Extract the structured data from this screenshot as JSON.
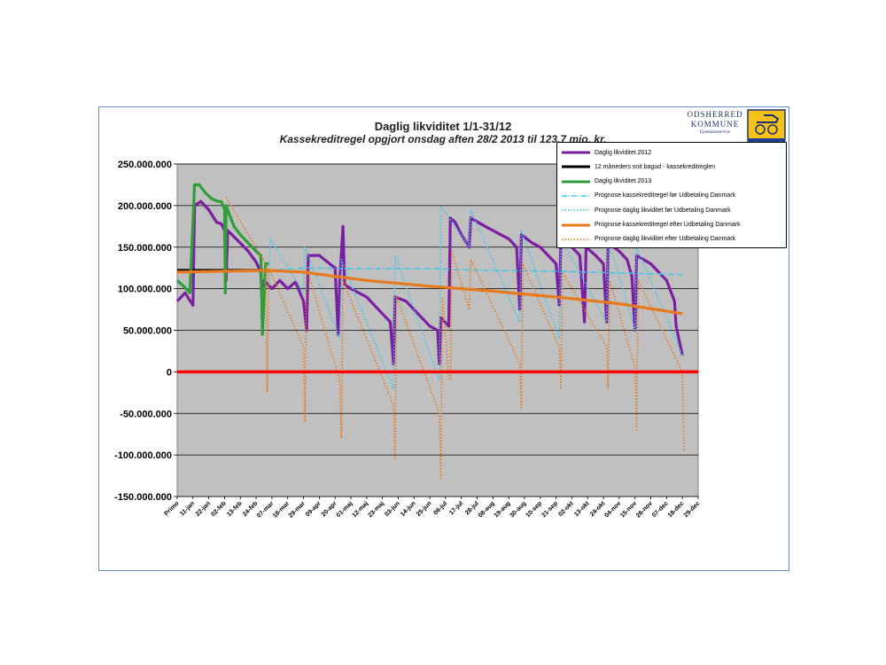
{
  "logo": {
    "line1": "ODSHERRED",
    "line2": "KOMMUNE",
    "line3": "Ejendomsservice"
  },
  "chart_data": {
    "type": "line",
    "title": "Daglig likviditet 1/1-31/12",
    "subtitle": "Kassekreditregel opgjort onsdag aften 28/2 2013 til 123,7 mio. kr.",
    "ylim": [
      -150000000,
      250000000
    ],
    "yticks": [
      "250.000.000",
      "200.000.000",
      "150.000.000",
      "100.000.000",
      "50.000.000",
      "0",
      "-50.000.000",
      "-100.000.000",
      "-150.000.000"
    ],
    "categories": [
      "Primo",
      "11-jan",
      "22-jan",
      "02-feb",
      "13-feb",
      "24-feb",
      "07-mar",
      "18-mar",
      "29-mar",
      "09-apr",
      "20-apr",
      "01-maj",
      "12-maj",
      "23-maj",
      "03-jun",
      "14-jun",
      "25-jun",
      "06-jul",
      "17-jul",
      "28-jul",
      "08-aug",
      "19-aug",
      "30-aug",
      "10-sep",
      "21-sep",
      "02-okt",
      "13-okt",
      "24-okt",
      "04-nov",
      "15-nov",
      "26-nov",
      "07-dec",
      "18-dec",
      "29-dec"
    ],
    "grid": true,
    "legend_position": "top-right",
    "zero_line_color": "#ff0000",
    "series": [
      {
        "name": "Daglig likviditet 2012",
        "color": "#7b1fa2",
        "style": "solid",
        "points": [
          [
            0,
            85
          ],
          [
            0.5,
            95
          ],
          [
            1,
            80
          ],
          [
            1.1,
            200
          ],
          [
            1.5,
            205
          ],
          [
            2,
            195
          ],
          [
            2.5,
            180
          ],
          [
            2.8,
            178
          ],
          [
            3,
            170
          ],
          [
            3.1,
            110
          ],
          [
            3.2,
            170
          ],
          [
            4,
            155
          ],
          [
            4.5,
            145
          ],
          [
            5,
            132
          ],
          [
            5.3,
            120
          ],
          [
            5.4,
            70
          ],
          [
            5.5,
            110
          ],
          [
            6,
            100
          ],
          [
            6.5,
            110
          ],
          [
            7,
            100
          ],
          [
            7.5,
            108
          ],
          [
            8,
            85
          ],
          [
            8.2,
            50
          ],
          [
            8.3,
            140
          ],
          [
            9,
            140
          ],
          [
            10,
            125
          ],
          [
            10.2,
            45
          ],
          [
            10.3,
            110
          ],
          [
            10.5,
            175
          ],
          [
            10.6,
            105
          ],
          [
            11,
            100
          ],
          [
            12,
            90
          ],
          [
            13,
            70
          ],
          [
            13.5,
            60
          ],
          [
            13.7,
            10
          ],
          [
            13.8,
            90
          ],
          [
            14.5,
            85
          ],
          [
            15,
            75
          ],
          [
            16,
            55
          ],
          [
            16.5,
            50
          ],
          [
            16.6,
            10
          ],
          [
            16.7,
            65
          ],
          [
            17.2,
            55
          ],
          [
            17.3,
            185
          ],
          [
            17.6,
            180
          ],
          [
            18,
            165
          ],
          [
            18.5,
            150
          ],
          [
            18.6,
            185
          ],
          [
            19.5,
            175
          ],
          [
            20,
            170
          ],
          [
            21,
            160
          ],
          [
            21.5,
            150
          ],
          [
            21.7,
            75
          ],
          [
            21.8,
            165
          ],
          [
            22.5,
            155
          ],
          [
            23,
            150
          ],
          [
            23.5,
            140
          ],
          [
            24,
            130
          ],
          [
            24.2,
            80
          ],
          [
            24.3,
            155
          ],
          [
            25,
            150
          ],
          [
            25.5,
            140
          ],
          [
            25.8,
            60
          ],
          [
            25.9,
            150
          ],
          [
            26.5,
            140
          ],
          [
            27,
            130
          ],
          [
            27.2,
            60
          ],
          [
            27.3,
            155
          ],
          [
            28,
            145
          ],
          [
            28.5,
            135
          ],
          [
            28.8,
            115
          ],
          [
            29,
            50
          ],
          [
            29.1,
            140
          ],
          [
            30,
            130
          ],
          [
            31,
            110
          ],
          [
            31.5,
            85
          ],
          [
            31.6,
            55
          ],
          [
            32,
            20
          ]
        ]
      },
      {
        "name": "12 måneders snit bagud - kassekreditreglen",
        "color": "#000000",
        "style": "solid",
        "points": [
          [
            0,
            122
          ],
          [
            5.8,
            122
          ]
        ]
      },
      {
        "name": "Daglig likviditet 2013",
        "color": "#2e9d3a",
        "style": "solid",
        "points": [
          [
            0,
            110
          ],
          [
            0.3,
            105
          ],
          [
            0.8,
            95
          ],
          [
            1.1,
            225
          ],
          [
            1.4,
            225
          ],
          [
            1.8,
            215
          ],
          [
            2.2,
            208
          ],
          [
            2.6,
            205
          ],
          [
            2.8,
            205
          ],
          [
            3.0,
            195
          ],
          [
            3.05,
            95
          ],
          [
            3.1,
            200
          ],
          [
            3.6,
            175
          ],
          [
            4,
            165
          ],
          [
            4.5,
            155
          ],
          [
            5,
            145
          ],
          [
            5.3,
            140
          ],
          [
            5.4,
            45
          ],
          [
            5.6,
            130
          ],
          [
            5.8,
            130
          ]
        ]
      },
      {
        "name": "Prognose kassekreditregel før Udbetaling Danmark",
        "color": "#3ec5ea",
        "style": "dashdot",
        "points": [
          [
            5.8,
            122
          ],
          [
            8,
            125
          ],
          [
            12,
            124
          ],
          [
            16,
            124
          ],
          [
            20,
            122
          ],
          [
            24,
            121
          ],
          [
            28,
            119
          ],
          [
            32,
            117
          ]
        ]
      },
      {
        "name": "Prognose daglig likviditet før Udbetaling Danmark",
        "color": "#3ec5ea",
        "style": "dotted",
        "points": [
          [
            5.8,
            100
          ],
          [
            5.9,
            160
          ],
          [
            8,
            95
          ],
          [
            8.1,
            150
          ],
          [
            10.3,
            40
          ],
          [
            10.4,
            135
          ],
          [
            13.7,
            -20
          ],
          [
            13.8,
            140
          ],
          [
            16.6,
            -10
          ],
          [
            16.7,
            200
          ],
          [
            18.5,
            150
          ],
          [
            18.6,
            195
          ],
          [
            21.7,
            60
          ],
          [
            21.8,
            170
          ],
          [
            24.2,
            40
          ],
          [
            24.3,
            160
          ],
          [
            27.2,
            60
          ],
          [
            27.3,
            160
          ],
          [
            29,
            50
          ],
          [
            29.1,
            150
          ],
          [
            32,
            20
          ]
        ]
      },
      {
        "name": "Prognose kassekreditregel efter Udbetaling Danmark",
        "color": "#e87a1e",
        "style": "solid",
        "points": [
          [
            0,
            120
          ],
          [
            5.8,
            122
          ],
          [
            8,
            120
          ],
          [
            12,
            110
          ],
          [
            16,
            103
          ],
          [
            20,
            97
          ],
          [
            24,
            90
          ],
          [
            28,
            82
          ],
          [
            32,
            70
          ]
        ]
      },
      {
        "name": "Prognose daglig likviditet efter Udbetaling Danmark",
        "color": "#e87a1e",
        "style": "dotted",
        "points": [
          [
            3.1,
            210
          ],
          [
            5.6,
            130
          ],
          [
            5.7,
            -25
          ],
          [
            5.8,
            125
          ],
          [
            8,
            30
          ],
          [
            8.1,
            -60
          ],
          [
            8.2,
            125
          ],
          [
            10.3,
            -10
          ],
          [
            10.4,
            -80
          ],
          [
            10.5,
            110
          ],
          [
            13.7,
            -40
          ],
          [
            13.8,
            -105
          ],
          [
            13.9,
            90
          ],
          [
            16.6,
            -50
          ],
          [
            16.7,
            -128
          ],
          [
            16.8,
            90
          ],
          [
            17.2,
            -5
          ],
          [
            17.3,
            -10
          ],
          [
            17.4,
            145
          ],
          [
            18.5,
            75
          ],
          [
            18.6,
            135
          ],
          [
            21.7,
            10
          ],
          [
            21.8,
            -45
          ],
          [
            21.9,
            130
          ],
          [
            24.2,
            30
          ],
          [
            24.3,
            -20
          ],
          [
            24.4,
            120
          ],
          [
            27.2,
            30
          ],
          [
            27.3,
            -20
          ],
          [
            27.4,
            110
          ],
          [
            29,
            5
          ],
          [
            29.1,
            -70
          ],
          [
            29.2,
            110
          ],
          [
            32,
            0
          ],
          [
            32.1,
            -95
          ]
        ]
      }
    ]
  }
}
